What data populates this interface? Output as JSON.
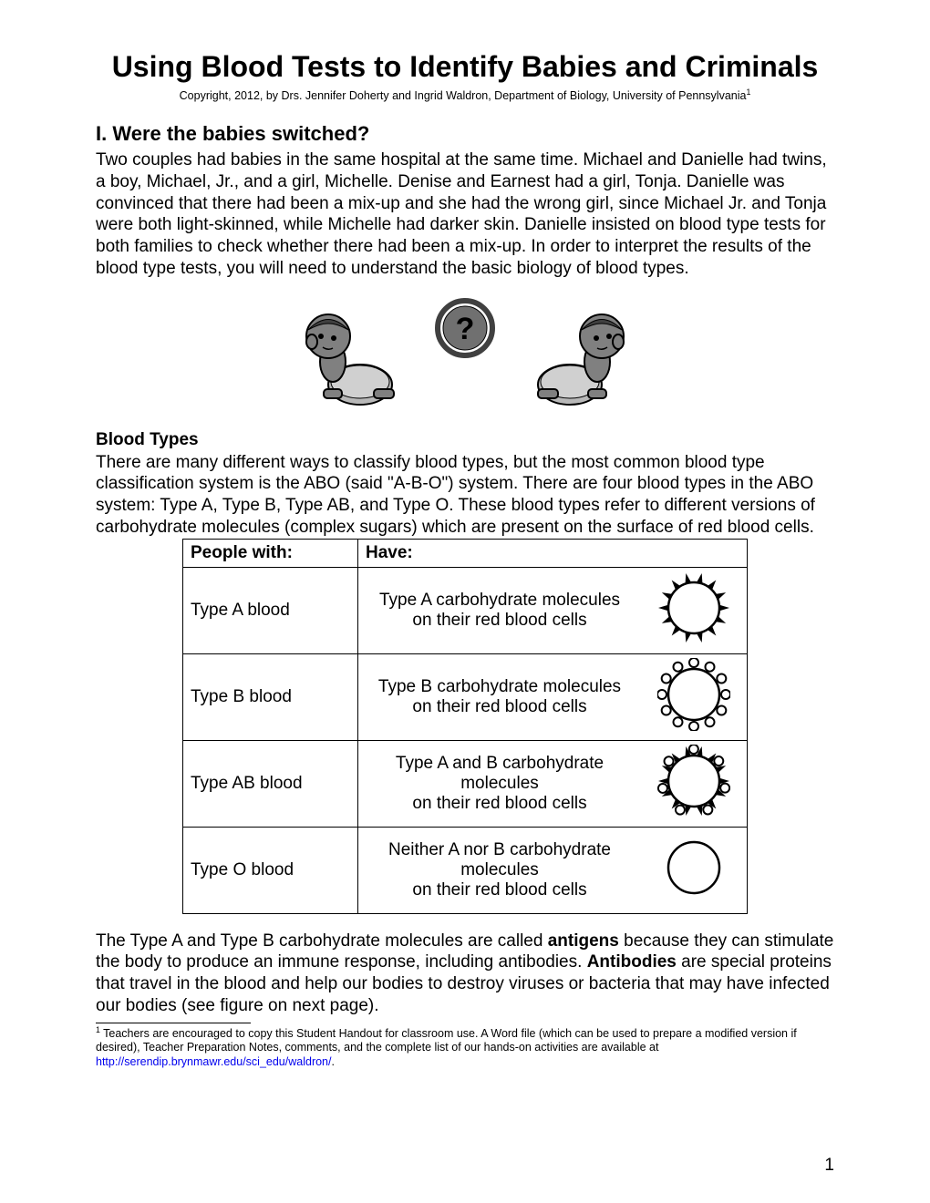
{
  "title": "Using Blood Tests to Identify Babies and Criminals",
  "copyright": "Copyright, 2012, by Drs. Jennifer Doherty and Ingrid Waldron, Department of Biology, University of Pennsylvania",
  "section1": {
    "heading": "I. Were the babies switched?",
    "paragraph": "Two couples had babies in the same hospital at the same time.  Michael and Danielle had twins, a boy, Michael, Jr., and a girl, Michelle.  Denise and Earnest had a girl, Tonja.  Danielle was convinced that there had been a mix-up and she had the wrong girl, since Michael Jr. and Tonja were both light-skinned, while Michelle had darker skin.  Danielle insisted on blood type tests for both families to check whether there had been a mix-up. In order to interpret the results of the blood type tests, you will need to understand the basic biology of blood types."
  },
  "section2": {
    "subheading": "Blood Types",
    "intro": "There are many different ways to classify blood types, but the most common blood type classification system is the ABO (said \"A-B-O\") system.  There are four blood types in the ABO system: Type A, Type B, Type AB, and Type O.  These blood types refer to different versions of carbohydrate molecules (complex sugars) which are present on the surface of red blood cells."
  },
  "table": {
    "header_people": "People with",
    "header_have": "Have:",
    "rows": [
      {
        "people": "Type A blood",
        "have": "Type A carbohydrate molecules\non their red blood cells",
        "cell_type": "A"
      },
      {
        "people": "Type B blood",
        "have": "Type B carbohydrate molecules\non their red blood cells",
        "cell_type": "B"
      },
      {
        "people": "Type AB blood",
        "have": "Type A and B carbohydrate molecules\non their red blood cells",
        "cell_type": "AB"
      },
      {
        "people": "Type O blood",
        "have": "Neither A nor B carbohydrate molecules\non their red blood cells",
        "cell_type": "O"
      }
    ]
  },
  "closing": {
    "pre_bold1": "The Type A and Type B carbohydrate molecules are called ",
    "bold1": "antigens",
    "mid": " because they can stimulate the body to produce an immune response, including antibodies.  ",
    "bold2": "Antibodies",
    "post_bold2": " are special proteins that travel in the blood and help our bodies to destroy viruses or bacteria that may have infected our bodies (see figure on next page)."
  },
  "footnote": {
    "text_before_link": " Teachers are encouraged to copy this Student Handout for classroom use.  A Word file (which can be used to prepare a modified version if desired), Teacher Preparation Notes, comments, and the complete list of our hands-on activities are available at ",
    "link_text": "http://serendip.brynmawr.edu/sci_edu/waldron/",
    "after_link": "."
  },
  "page_number": "1",
  "colors": {
    "text": "#000000",
    "background": "#ffffff",
    "link": "#0000ee",
    "illustration_fill": "#808080",
    "illustration_light": "#b8b8b8",
    "illustration_stroke": "#000000"
  }
}
